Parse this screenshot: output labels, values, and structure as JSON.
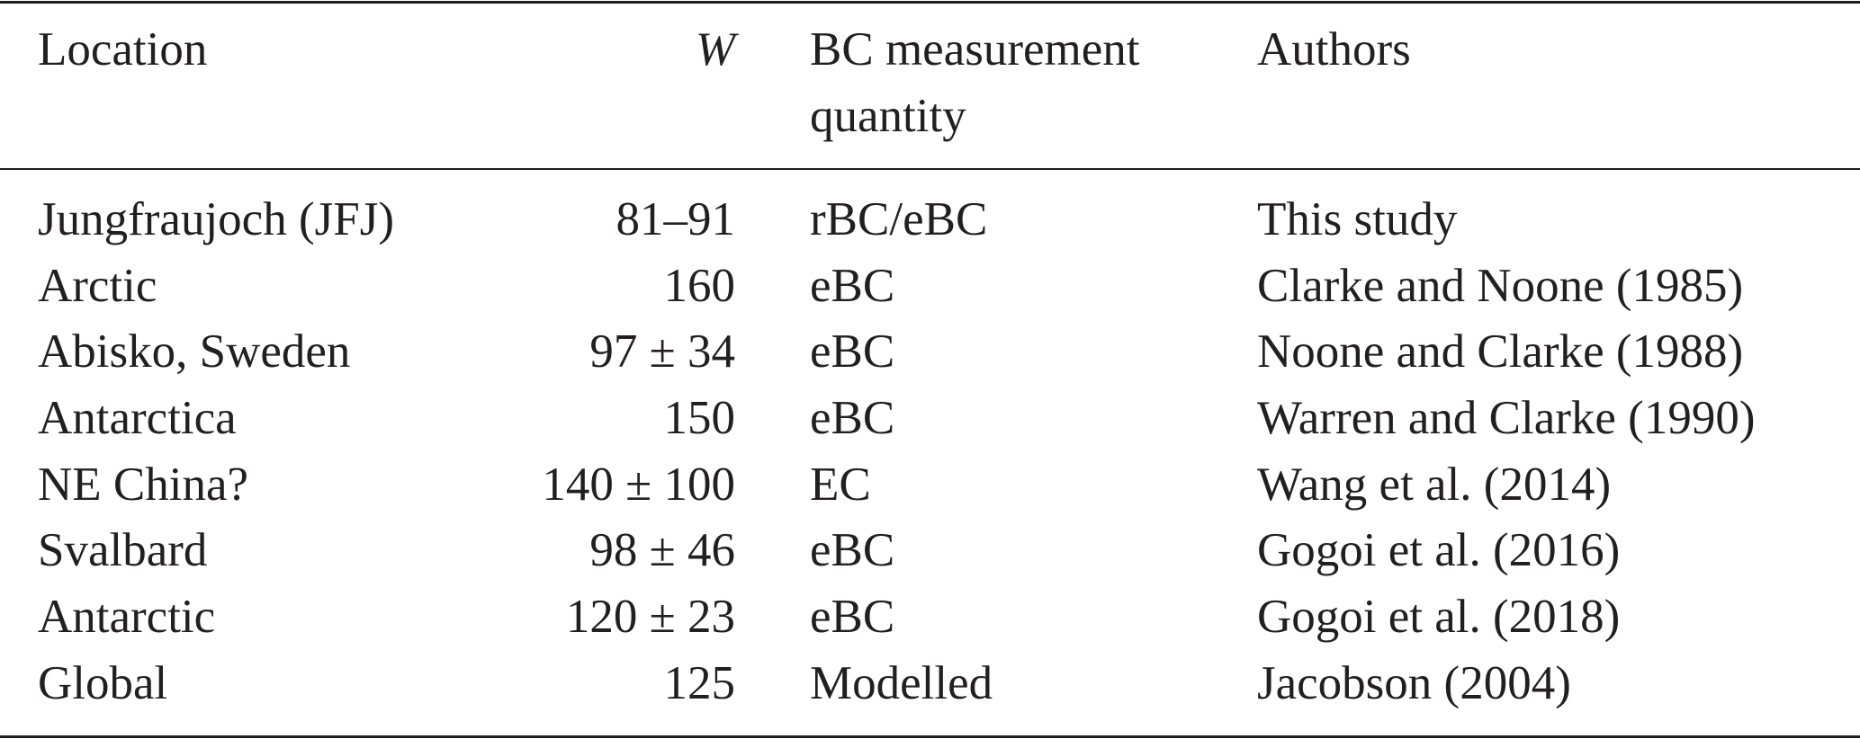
{
  "table": {
    "header": [
      "Location",
      "W",
      "BC measurement quantity",
      "Authors"
    ],
    "rows": [
      [
        "Jungfraujoch (JFJ)",
        "81–91",
        "rBC/eBC",
        "This study"
      ],
      [
        "Arctic",
        "160",
        "eBC",
        "Clarke and Noone (1985)"
      ],
      [
        "Abisko, Sweden",
        "97 ± 34",
        "eBC",
        "Noone and Clarke (1988)"
      ],
      [
        "Antarctica",
        "150",
        "eBC",
        "Warren and Clarke (1990)"
      ],
      [
        "NE China?",
        "140 ± 100",
        "EC",
        "Wang et al. (2014)"
      ],
      [
        "Svalbard",
        "98 ± 46",
        "eBC",
        "Gogoi et al. (2016)"
      ],
      [
        "Antarctic",
        "120 ± 23",
        "eBC",
        "Gogoi et al. (2018)"
      ],
      [
        "Global",
        "125",
        "Modelled",
        "Jacobson (2004)"
      ]
    ]
  }
}
